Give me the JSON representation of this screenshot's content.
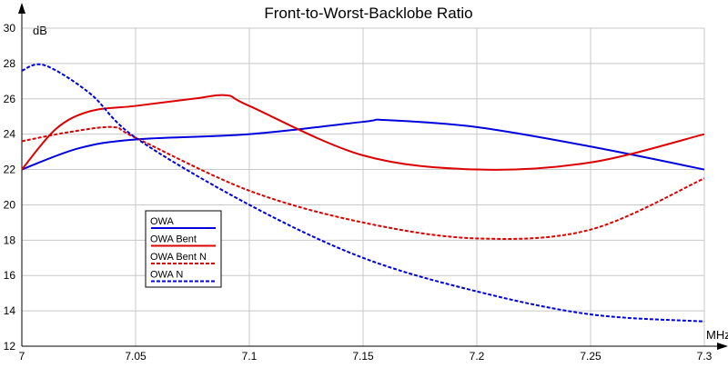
{
  "chart_data": {
    "type": "line",
    "title": "Front-to-Worst-Backlobe Ratio",
    "xlabel": "MHz",
    "ylabel": "dB",
    "xlim": [
      7.0,
      7.3
    ],
    "ylim": [
      12,
      30
    ],
    "xticks": [
      7.0,
      7.05,
      7.1,
      7.15,
      7.2,
      7.25,
      7.3
    ],
    "xtick_labels": [
      "7",
      "7.05",
      "7.1",
      "7.15",
      "7.2",
      "7.25",
      "7.3"
    ],
    "yticks": [
      12,
      14,
      16,
      18,
      20,
      22,
      24,
      26,
      28,
      30
    ],
    "ytick_labels": [
      "12",
      "14",
      "16",
      "18",
      "20",
      "22",
      "24",
      "26",
      "28",
      "30"
    ],
    "grid": true,
    "legend_position": "lower-left-inside",
    "series": [
      {
        "name": "OWA",
        "color": "#0000dd",
        "dash": "solid",
        "x": [
          7.0,
          7.025,
          7.05,
          7.1,
          7.15,
          7.16,
          7.2,
          7.25,
          7.3
        ],
        "y": [
          22.0,
          23.2,
          23.7,
          24.0,
          24.7,
          24.8,
          24.4,
          23.3,
          22.0
        ]
      },
      {
        "name": "OWA Bent",
        "color": "#dd0000",
        "dash": "solid",
        "x": [
          7.0,
          7.015,
          7.03,
          7.05,
          7.075,
          7.09,
          7.1,
          7.15,
          7.2,
          7.25,
          7.3
        ],
        "y": [
          22.0,
          24.3,
          25.3,
          25.6,
          26.0,
          26.2,
          25.6,
          22.8,
          22.0,
          22.4,
          24.0
        ]
      },
      {
        "name": "OWA Bent N",
        "color": "#dd0000",
        "dash": "dashed",
        "x": [
          7.0,
          7.02,
          7.04,
          7.05,
          7.1,
          7.15,
          7.2,
          7.25,
          7.3
        ],
        "y": [
          23.6,
          24.1,
          24.4,
          23.8,
          20.8,
          19.0,
          18.1,
          18.6,
          21.5
        ]
      },
      {
        "name": "OWA N",
        "color": "#0000dd",
        "dash": "dashed",
        "x": [
          7.0,
          7.01,
          7.03,
          7.05,
          7.1,
          7.15,
          7.2,
          7.25,
          7.3
        ],
        "y": [
          27.6,
          27.9,
          26.3,
          23.8,
          20.0,
          17.0,
          15.1,
          13.8,
          13.4
        ]
      }
    ]
  }
}
